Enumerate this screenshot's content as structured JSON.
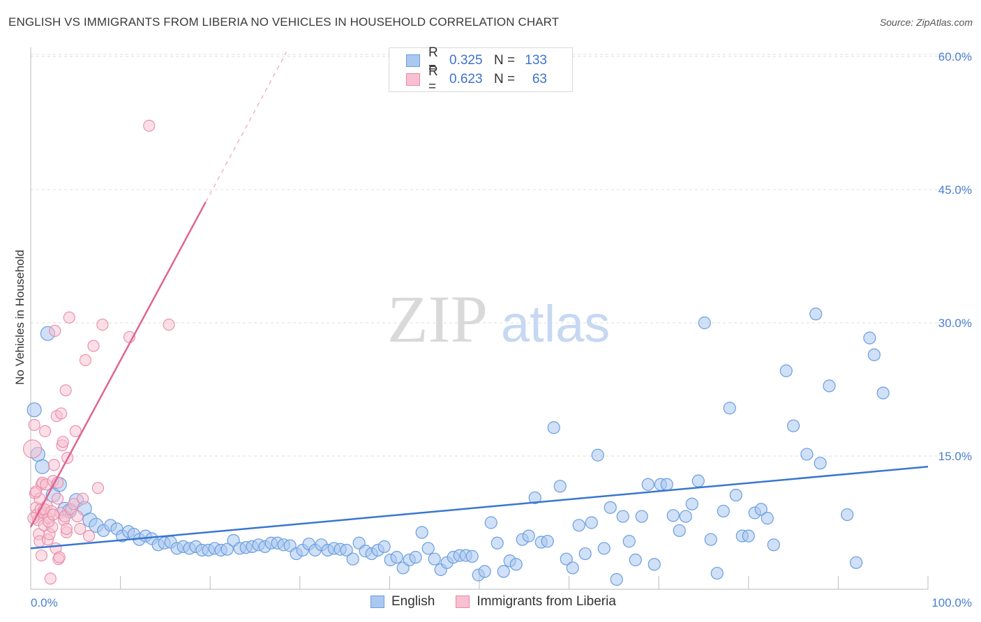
{
  "header": {
    "title": "ENGLISH VS IMMIGRANTS FROM LIBERIA NO VEHICLES IN HOUSEHOLD CORRELATION CHART",
    "source": "Source: ZipAtlas.com"
  },
  "watermark": {
    "zip": "ZIP",
    "atlas": "atlas"
  },
  "legend": {
    "rows": [
      {
        "r_label": "R =",
        "r_value": "0.325",
        "n_label": "N =",
        "n_value": "133",
        "color": "#aac8f0",
        "border": "#6b9de0"
      },
      {
        "r_label": "R =",
        "r_value": "0.623",
        "n_label": "N =",
        "n_value": "63",
        "color": "#f8c0d0",
        "border": "#e889a8"
      }
    ]
  },
  "bottom_legend": {
    "english": "English",
    "liberia": "Immigrants from Liberia"
  },
  "colors": {
    "english_fill": "#a9c7ef",
    "english_stroke": "#6a9ee0",
    "english_line": "#3a76d0",
    "liberia_fill": "#f7bfd0",
    "liberia_stroke": "#e88aa8",
    "liberia_line": "#e0648f",
    "grid": "#dddddd",
    "tick_text": "#4a7fd0"
  },
  "chart_data": {
    "type": "scatter",
    "title": "ENGLISH VS IMMIGRANTS FROM LIBERIA NO VEHICLES IN HOUSEHOLD CORRELATION CHART",
    "xlabel": "",
    "ylabel": "No Vehicles in Household",
    "xlim": [
      0,
      100
    ],
    "ylim": [
      0,
      62
    ],
    "x_tick_labels": [
      "0.0%",
      "100.0%"
    ],
    "y_ticks": [
      15,
      30,
      45,
      60
    ],
    "y_tick_labels": [
      "15.0%",
      "30.0%",
      "45.0%",
      "60.0%"
    ],
    "grid": true,
    "legend_position": "top-center",
    "series": [
      {
        "name": "English",
        "r": 0.325,
        "n": 133,
        "trend": {
          "x0": 0,
          "y0": 4.6,
          "x1": 100,
          "y1": 13.8,
          "dashed_to": null
        },
        "points": [
          [
            0.4,
            20.2
          ],
          [
            0.8,
            15.2
          ],
          [
            1.3,
            13.8
          ],
          [
            1.9,
            28.8
          ],
          [
            2.5,
            10.6
          ],
          [
            3.2,
            11.8
          ],
          [
            3.8,
            9.0
          ],
          [
            4.3,
            8.8
          ],
          [
            5.1,
            10.0
          ],
          [
            6.0,
            9.1
          ],
          [
            6.6,
            7.8
          ],
          [
            7.3,
            7.2
          ],
          [
            8.1,
            6.6
          ],
          [
            8.9,
            7.2
          ],
          [
            9.6,
            6.8
          ],
          [
            10.2,
            6.0
          ],
          [
            10.9,
            6.5
          ],
          [
            11.5,
            6.2
          ],
          [
            12.1,
            5.6
          ],
          [
            12.8,
            6.0
          ],
          [
            13.5,
            5.7
          ],
          [
            14.2,
            5.0
          ],
          [
            14.9,
            5.2
          ],
          [
            15.6,
            5.3
          ],
          [
            16.3,
            4.6
          ],
          [
            17.0,
            4.8
          ],
          [
            17.7,
            4.6
          ],
          [
            18.4,
            4.8
          ],
          [
            19.1,
            4.4
          ],
          [
            19.8,
            4.4
          ],
          [
            20.5,
            4.6
          ],
          [
            21.2,
            4.4
          ],
          [
            21.9,
            4.5
          ],
          [
            22.6,
            5.5
          ],
          [
            23.3,
            4.6
          ],
          [
            24.0,
            4.7
          ],
          [
            24.7,
            4.8
          ],
          [
            25.4,
            5.0
          ],
          [
            26.1,
            4.8
          ],
          [
            26.8,
            5.2
          ],
          [
            27.5,
            5.2
          ],
          [
            28.2,
            5.0
          ],
          [
            28.9,
            4.9
          ],
          [
            29.6,
            4.0
          ],
          [
            30.3,
            4.4
          ],
          [
            31.0,
            5.1
          ],
          [
            31.7,
            4.4
          ],
          [
            32.4,
            5.0
          ],
          [
            33.1,
            4.4
          ],
          [
            33.8,
            4.6
          ],
          [
            34.5,
            4.5
          ],
          [
            35.2,
            4.4
          ],
          [
            35.9,
            3.4
          ],
          [
            36.6,
            5.2
          ],
          [
            37.3,
            4.3
          ],
          [
            38.0,
            4.0
          ],
          [
            38.7,
            4.4
          ],
          [
            39.4,
            4.8
          ],
          [
            40.1,
            3.3
          ],
          [
            40.8,
            3.6
          ],
          [
            41.5,
            2.4
          ],
          [
            42.2,
            3.3
          ],
          [
            42.9,
            3.6
          ],
          [
            43.6,
            6.4
          ],
          [
            44.3,
            4.6
          ],
          [
            45.0,
            3.4
          ],
          [
            45.7,
            2.2
          ],
          [
            46.4,
            3.0
          ],
          [
            47.1,
            3.6
          ],
          [
            47.8,
            3.8
          ],
          [
            48.5,
            3.8
          ],
          [
            49.2,
            3.7
          ],
          [
            49.9,
            1.6
          ],
          [
            50.6,
            2.0
          ],
          [
            51.3,
            7.5
          ],
          [
            52.0,
            5.2
          ],
          [
            52.7,
            2.0
          ],
          [
            53.4,
            3.2
          ],
          [
            54.1,
            2.8
          ],
          [
            54.8,
            5.6
          ],
          [
            55.5,
            6.0
          ],
          [
            56.2,
            10.3
          ],
          [
            56.9,
            5.3
          ],
          [
            57.6,
            5.4
          ],
          [
            58.3,
            18.2
          ],
          [
            59.0,
            11.6
          ],
          [
            59.7,
            3.4
          ],
          [
            60.4,
            2.4
          ],
          [
            61.1,
            7.2
          ],
          [
            61.8,
            4.0
          ],
          [
            62.5,
            7.5
          ],
          [
            63.2,
            15.1
          ],
          [
            63.9,
            4.6
          ],
          [
            64.6,
            9.2
          ],
          [
            65.3,
            1.1
          ],
          [
            66.0,
            8.2
          ],
          [
            66.7,
            5.4
          ],
          [
            67.4,
            3.3
          ],
          [
            68.1,
            8.2
          ],
          [
            68.8,
            11.8
          ],
          [
            69.5,
            2.8
          ],
          [
            70.2,
            11.8
          ],
          [
            70.9,
            11.8
          ],
          [
            71.6,
            8.3
          ],
          [
            72.3,
            6.6
          ],
          [
            73.0,
            8.2
          ],
          [
            73.7,
            9.6
          ],
          [
            74.4,
            12.2
          ],
          [
            75.1,
            30.0
          ],
          [
            75.8,
            5.6
          ],
          [
            76.5,
            1.8
          ],
          [
            77.2,
            8.8
          ],
          [
            77.9,
            20.4
          ],
          [
            78.6,
            10.6
          ],
          [
            79.3,
            6.0
          ],
          [
            80.0,
            6.0
          ],
          [
            80.7,
            8.6
          ],
          [
            81.4,
            9.0
          ],
          [
            82.1,
            8.0
          ],
          [
            82.8,
            5.0
          ],
          [
            84.2,
            24.6
          ],
          [
            85.0,
            18.4
          ],
          [
            86.5,
            15.2
          ],
          [
            87.5,
            31.0
          ],
          [
            88.0,
            14.2
          ],
          [
            89.0,
            22.9
          ],
          [
            91.0,
            8.4
          ],
          [
            92.0,
            3.0
          ],
          [
            93.5,
            28.3
          ],
          [
            94.0,
            26.4
          ],
          [
            95.0,
            22.1
          ]
        ]
      },
      {
        "name": "Immigrants from Liberia",
        "r": 0.623,
        "n": 63,
        "trend": {
          "x0": 0,
          "y0": 7.0,
          "x1": 19.5,
          "y1": 43.6,
          "dashed_to": [
            28.5,
            60.5
          ]
        },
        "points": [
          [
            0.2,
            15.8
          ],
          [
            0.4,
            18.5
          ],
          [
            0.5,
            10.8
          ],
          [
            0.6,
            9.2
          ],
          [
            0.7,
            8.4
          ],
          [
            0.8,
            7.8
          ],
          [
            0.9,
            6.2
          ],
          [
            1.0,
            5.4
          ],
          [
            1.1,
            9.0
          ],
          [
            1.2,
            11.8
          ],
          [
            1.3,
            12.0
          ],
          [
            1.4,
            8.6
          ],
          [
            1.5,
            7.2
          ],
          [
            1.6,
            17.8
          ],
          [
            1.7,
            11.8
          ],
          [
            1.8,
            9.4
          ],
          [
            1.9,
            5.6
          ],
          [
            2.0,
            8.0
          ],
          [
            2.1,
            6.2
          ],
          [
            2.2,
            1.2
          ],
          [
            2.3,
            8.8
          ],
          [
            2.4,
            7.0
          ],
          [
            2.5,
            12.2
          ],
          [
            2.6,
            14.0
          ],
          [
            2.7,
            29.1
          ],
          [
            2.8,
            4.6
          ],
          [
            2.9,
            19.5
          ],
          [
            3.0,
            10.2
          ],
          [
            3.1,
            3.4
          ],
          [
            3.2,
            3.6
          ],
          [
            3.3,
            8.6
          ],
          [
            3.4,
            19.8
          ],
          [
            3.5,
            16.2
          ],
          [
            3.6,
            16.6
          ],
          [
            3.7,
            7.8
          ],
          [
            3.8,
            8.2
          ],
          [
            3.9,
            22.4
          ],
          [
            4.0,
            6.4
          ],
          [
            4.1,
            14.8
          ],
          [
            4.3,
            30.6
          ],
          [
            4.5,
            9.0
          ],
          [
            4.8,
            9.6
          ],
          [
            5.0,
            17.8
          ],
          [
            5.2,
            8.2
          ],
          [
            5.5,
            6.8
          ],
          [
            5.8,
            10.2
          ],
          [
            6.1,
            25.8
          ],
          [
            6.5,
            6.0
          ],
          [
            7.0,
            27.4
          ],
          [
            7.5,
            11.4
          ],
          [
            8.0,
            29.8
          ],
          [
            11.0,
            28.4
          ],
          [
            13.2,
            52.2
          ],
          [
            15.4,
            29.8
          ],
          [
            1.0,
            10.2
          ],
          [
            1.5,
            9.0
          ],
          [
            2.0,
            7.6
          ],
          [
            2.5,
            8.4
          ],
          [
            3.0,
            12.0
          ],
          [
            4.0,
            6.8
          ],
          [
            0.3,
            8.0
          ],
          [
            0.6,
            11.0
          ],
          [
            1.2,
            3.8
          ]
        ]
      }
    ]
  }
}
